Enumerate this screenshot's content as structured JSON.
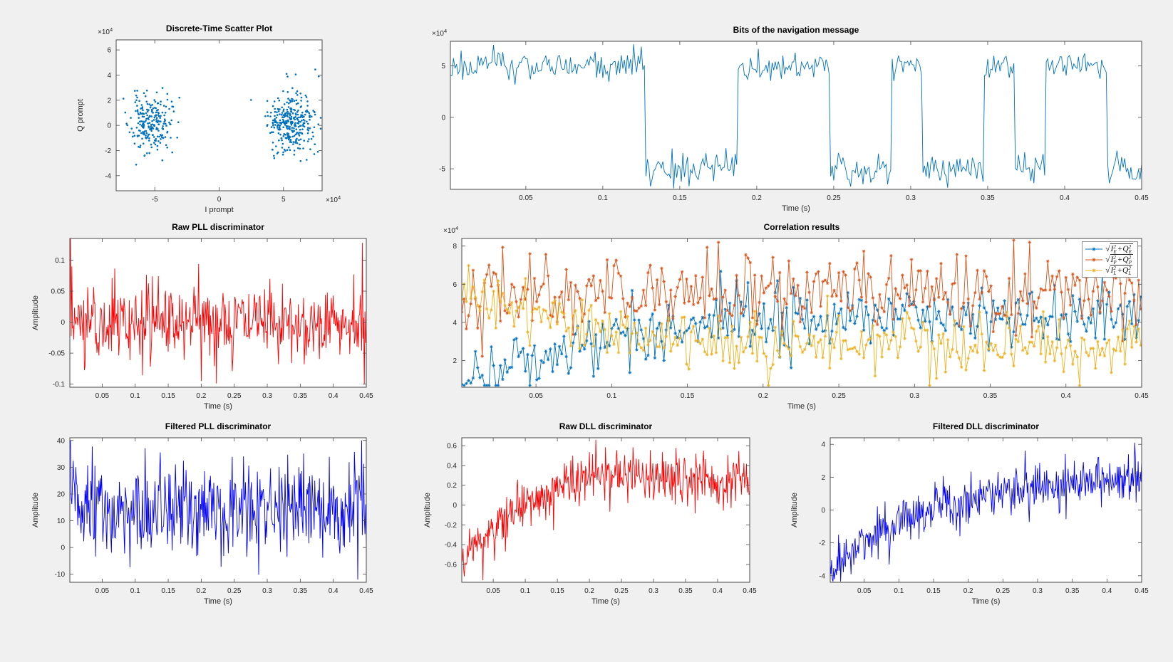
{
  "figure": {
    "background": "#f0f0f0",
    "plot_background": "#ffffff",
    "axes_color": "#4a4a4a",
    "tick_label_color": "#262626",
    "series_colors": {
      "matlab_blue": "#0072BD",
      "matlab_orange": "#D95319",
      "matlab_yellow": "#EDB120",
      "pure_red": "#FF0000",
      "pure_blue": "#0000FF"
    }
  },
  "chart_data": [
    {
      "id": "scatter",
      "name": "discrete-time-scatter-plot",
      "type": "scatter",
      "title": "Discrete-Time Scatter Plot",
      "xlabel": "I prompt",
      "ylabel": "Q prompt",
      "x_offset_label": "×10^4",
      "y_offset_label": "×10^4",
      "xlim": [
        -80000,
        80000
      ],
      "ylim": [
        -52000,
        68000
      ],
      "xticks": [
        -50000,
        0,
        50000
      ],
      "xtick_labels": [
        "-5",
        "0",
        "5"
      ],
      "yticks": [
        -40000,
        -20000,
        0,
        20000,
        40000,
        60000
      ],
      "ytick_labels": [
        "-4",
        "-2",
        "0",
        "2",
        "4",
        "6"
      ],
      "series": [
        {
          "name": "bpsk-constellation",
          "color": "#0072BD",
          "gen": "clusters",
          "marker": "dot",
          "seed": 11,
          "clusters": [
            {
              "cx": -53500,
              "cy": 1500,
              "sx": 7800,
              "sy": 11500,
              "n": 230
            },
            {
              "cx": 56000,
              "cy": 3000,
              "sx": 9000,
              "sy": 12000,
              "n": 330
            }
          ]
        }
      ]
    },
    {
      "id": "navbits",
      "name": "bits-of-the-navigation-message",
      "type": "line",
      "title": "Bits of the navigation message",
      "xlabel": "Time (s)",
      "y_offset_label": "×10^4",
      "xlim": [
        0.001,
        0.45
      ],
      "ylim": [
        -70000,
        74000
      ],
      "xticks": [
        0.05,
        0.1,
        0.15,
        0.2,
        0.25,
        0.3,
        0.35,
        0.4,
        0.45
      ],
      "xtick_labels": [
        "0.05",
        "0.1",
        "0.15",
        "0.2",
        "0.25",
        "0.3",
        "0.35",
        "0.4",
        "0.45"
      ],
      "yticks": [
        -50000,
        0,
        50000
      ],
      "ytick_labels": [
        "-5",
        "0",
        "5"
      ],
      "series": [
        {
          "name": "nav-bits",
          "color": "#0072BD",
          "gen": "bits",
          "seed": 21,
          "params": {
            "t0": 0.001,
            "t1": 0.45,
            "dt": 0.001,
            "amp": 50000,
            "noise": 8000,
            "start_sign": 1,
            "transitions": [
              0.128,
              0.188,
              0.248,
              0.288,
              0.308,
              0.348,
              0.368,
              0.388,
              0.428
            ],
            "clamp": [
              -69000,
              73000
            ]
          }
        }
      ]
    },
    {
      "id": "rawpll",
      "name": "raw-pll-discriminator",
      "type": "line",
      "title": "Raw PLL discriminator",
      "xlabel": "Time (s)",
      "ylabel": "Amplitude",
      "xlim": [
        0.001,
        0.45
      ],
      "ylim": [
        -0.105,
        0.135
      ],
      "xticks": [
        0.05,
        0.1,
        0.15,
        0.2,
        0.25,
        0.3,
        0.35,
        0.4,
        0.45
      ],
      "xtick_labels": [
        "0.05",
        "0.1",
        "0.15",
        "0.2",
        "0.25",
        "0.3",
        "0.35",
        "0.4",
        "0.45"
      ],
      "yticks": [
        -0.1,
        -0.05,
        0,
        0.05,
        0.1
      ],
      "ytick_labels": [
        "-0.1",
        "-0.05",
        "0",
        "0.05",
        "0.1"
      ],
      "series": [
        {
          "name": "raw-pll",
          "color": "#FF0000",
          "gen": "trend",
          "seed": 31,
          "params": {
            "t0": 0.001,
            "t1": 0.45,
            "dt": 0.001,
            "noise": 0.03,
            "breakpoints": [
              [
                0.001,
                0
              ],
              [
                0.45,
                0
              ]
            ],
            "clamp": [
              -0.102,
              0.135
            ],
            "spikes": [
              [
                0.002,
                0.135
              ],
              [
                0.004,
                0.09
              ],
              [
                0.2,
                -0.095
              ],
              [
                0.444,
                0.128
              ],
              [
                0.447,
                -0.1
              ]
            ]
          }
        }
      ]
    },
    {
      "id": "corr",
      "name": "correlation-results",
      "type": "line",
      "title": "Correlation results",
      "xlabel": "Time (s)",
      "y_offset_label": "×10^4",
      "xlim": [
        0.001,
        0.45
      ],
      "ylim": [
        6000,
        84000
      ],
      "xticks": [
        0.05,
        0.1,
        0.15,
        0.2,
        0.25,
        0.3,
        0.35,
        0.4,
        0.45
      ],
      "xtick_labels": [
        "0.05",
        "0.1",
        "0.15",
        "0.2",
        "0.25",
        "0.3",
        "0.35",
        "0.4",
        "0.45"
      ],
      "yticks": [
        20000,
        40000,
        60000,
        80000
      ],
      "ytick_labels": [
        "2",
        "4",
        "6",
        "8"
      ],
      "series": [
        {
          "name": "early-correlator",
          "color": "#0072BD",
          "gen": "trend",
          "marker": "asterisk",
          "seed": 41,
          "params": {
            "t0": 0.001,
            "t1": 0.45,
            "dt": 0.0015,
            "noise": 8000,
            "breakpoints": [
              [
                0.001,
                12000
              ],
              [
                0.05,
                20000
              ],
              [
                0.12,
                36000
              ],
              [
                0.2,
                43000
              ],
              [
                0.45,
                43000
              ]
            ],
            "clamp": [
              7000,
              80000
            ]
          }
        },
        {
          "name": "prompt-correlator",
          "color": "#D95319",
          "gen": "trend",
          "marker": "asterisk",
          "seed": 42,
          "params": {
            "t0": 0.001,
            "t1": 0.45,
            "dt": 0.0015,
            "noise": 10000,
            "breakpoints": [
              [
                0.001,
                55000
              ],
              [
                0.45,
                56000
              ]
            ],
            "clamp": [
              20000,
              83000
            ],
            "spikes": [
              [
                0.17,
                82000
              ],
              [
                0.365,
                83000
              ]
            ]
          }
        },
        {
          "name": "late-correlator",
          "color": "#EDB120",
          "gen": "trend",
          "marker": "asterisk",
          "seed": 43,
          "params": {
            "t0": 0.001,
            "t1": 0.45,
            "dt": 0.0015,
            "noise": 8000,
            "breakpoints": [
              [
                0.001,
                52000
              ],
              [
                0.05,
                44000
              ],
              [
                0.12,
                32000
              ],
              [
                0.2,
                28000
              ],
              [
                0.45,
                26000
              ]
            ],
            "clamp": [
              7000,
              80000
            ]
          }
        }
      ],
      "legend": {
        "position": "top-right",
        "entries": [
          {
            "color": "#0072BD",
            "sub": "E",
            "label": "√(I_E²+Q_E²)"
          },
          {
            "color": "#D95319",
            "sub": "P",
            "label": "√(I_P²+Q_P²)"
          },
          {
            "color": "#EDB120",
            "sub": "L",
            "label": "√(I_L²+Q_L²)"
          }
        ]
      }
    },
    {
      "id": "fpll",
      "name": "filtered-pll-discriminator",
      "type": "line",
      "title": "Filtered PLL discriminator",
      "xlabel": "Time (s)",
      "ylabel": "Amplitude",
      "xlim": [
        0.001,
        0.45
      ],
      "ylim": [
        -13,
        41
      ],
      "xticks": [
        0.05,
        0.1,
        0.15,
        0.2,
        0.25,
        0.3,
        0.35,
        0.4,
        0.45
      ],
      "xtick_labels": [
        "0.05",
        "0.1",
        "0.15",
        "0.2",
        "0.25",
        "0.3",
        "0.35",
        "0.4",
        "0.45"
      ],
      "yticks": [
        -10,
        0,
        10,
        20,
        30,
        40
      ],
      "ytick_labels": [
        "-10",
        "0",
        "10",
        "20",
        "30",
        "40"
      ],
      "series": [
        {
          "name": "filtered-pll",
          "color": "#0000FF",
          "gen": "trend",
          "seed": 51,
          "params": {
            "t0": 0.001,
            "t1": 0.45,
            "dt": 0.001,
            "noise": 8.5,
            "breakpoints": [
              [
                0.001,
                22
              ],
              [
                0.02,
                13
              ],
              [
                0.45,
                13
              ]
            ],
            "clamp": [
              -12.5,
              40
            ],
            "spikes": [
              [
                0.002,
                40
              ],
              [
                0.437,
                -12
              ],
              [
                0.443,
                40
              ],
              [
                0.448,
                5
              ]
            ]
          }
        }
      ]
    },
    {
      "id": "rdll",
      "name": "raw-dll-discriminator",
      "type": "line",
      "title": "Raw DLL discriminator",
      "xlabel": "Time (s)",
      "ylabel": "Amplitude",
      "xlim": [
        0.001,
        0.45
      ],
      "ylim": [
        -0.78,
        0.68
      ],
      "xticks": [
        0.05,
        0.1,
        0.15,
        0.2,
        0.25,
        0.3,
        0.35,
        0.4,
        0.45
      ],
      "xtick_labels": [
        "0.05",
        "0.1",
        "0.15",
        "0.2",
        "0.25",
        "0.3",
        "0.35",
        "0.4",
        "0.45"
      ],
      "yticks": [
        -0.6,
        -0.4,
        -0.2,
        0,
        0.2,
        0.4,
        0.6
      ],
      "ytick_labels": [
        "-0.6",
        "-0.4",
        "-0.2",
        "0",
        "0.2",
        "0.4",
        "0.6"
      ],
      "series": [
        {
          "name": "raw-dll",
          "color": "#FF0000",
          "gen": "trend",
          "seed": 61,
          "params": {
            "t0": 0.001,
            "t1": 0.45,
            "dt": 0.001,
            "noise": 0.13,
            "breakpoints": [
              [
                0.001,
                -0.55
              ],
              [
                0.03,
                -0.38
              ],
              [
                0.07,
                -0.12
              ],
              [
                0.12,
                0.1
              ],
              [
                0.2,
                0.27
              ],
              [
                0.45,
                0.25
              ]
            ],
            "clamp": [
              -0.76,
              0.67
            ],
            "spikes": [
              [
                0.005,
                -0.72
              ],
              [
                0.21,
                0.66
              ]
            ]
          }
        }
      ]
    },
    {
      "id": "fdll",
      "name": "filtered-dll-discriminator",
      "type": "line",
      "title": "Filtered DLL discriminator",
      "xlabel": "Time (s)",
      "ylabel": "Amplitude",
      "xlim": [
        0.001,
        0.45
      ],
      "ylim": [
        -4.4,
        4.4
      ],
      "xticks": [
        0.05,
        0.1,
        0.15,
        0.2,
        0.25,
        0.3,
        0.35,
        0.4,
        0.45
      ],
      "xtick_labels": [
        "0.05",
        "0.1",
        "0.15",
        "0.2",
        "0.25",
        "0.3",
        "0.35",
        "0.4",
        "0.45"
      ],
      "yticks": [
        -4,
        -2,
        0,
        2,
        4
      ],
      "ytick_labels": [
        "-4",
        "-2",
        "0",
        "2",
        "4"
      ],
      "series": [
        {
          "name": "filtered-dll",
          "color": "#0000FF",
          "gen": "trend",
          "seed": 71,
          "params": {
            "t0": 0.001,
            "t1": 0.45,
            "dt": 0.001,
            "noise": 0.75,
            "breakpoints": [
              [
                0.001,
                -3.6
              ],
              [
                0.03,
                -2.7
              ],
              [
                0.07,
                -1.4
              ],
              [
                0.12,
                -0.3
              ],
              [
                0.2,
                0.6
              ],
              [
                0.3,
                1.6
              ],
              [
                0.45,
                2.0
              ]
            ],
            "clamp": [
              -4.35,
              4.35
            ],
            "spikes": [
              [
                0.004,
                -4.2
              ],
              [
                0.44,
                4.1
              ]
            ]
          }
        }
      ]
    }
  ]
}
